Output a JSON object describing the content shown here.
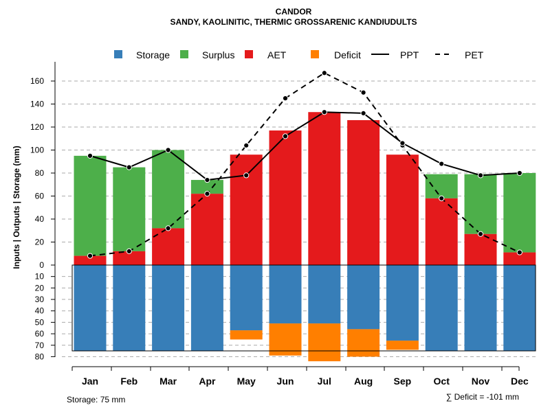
{
  "chart_data": {
    "type": "bar",
    "title": "CANDOR",
    "subtitle": "SANDY, KAOLINITIC, THERMIC GROSSARENIC KANDIUDULTS",
    "ylabel": "Inputs | Outputs | Storage    (mm)",
    "categories": [
      "Jan",
      "Feb",
      "Mar",
      "Apr",
      "May",
      "Jun",
      "Jul",
      "Aug",
      "Sep",
      "Oct",
      "Nov",
      "Dec"
    ],
    "ylim_upper": [
      0,
      170
    ],
    "ylim_lower": [
      0,
      80
    ],
    "upper_ticks": [
      "0",
      "20",
      "40",
      "60",
      "80",
      "100",
      "120",
      "140",
      "160"
    ],
    "upper_tick_values": [
      0,
      20,
      40,
      60,
      80,
      100,
      120,
      140,
      160
    ],
    "lower_ticks": [
      "10",
      "20",
      "30",
      "40",
      "50",
      "60",
      "70",
      "80"
    ],
    "lower_tick_values": [
      10,
      20,
      30,
      40,
      50,
      60,
      70,
      80
    ],
    "series": [
      {
        "name": "Storage",
        "color": "#377EB8",
        "values": [
          75,
          75,
          75,
          75,
          57,
          51,
          51,
          56,
          66,
          75,
          75,
          75
        ]
      },
      {
        "name": "Surplus",
        "color": "#4DAF4A",
        "values": [
          87,
          73,
          68,
          12,
          0,
          0,
          0,
          0,
          0,
          21,
          52,
          69
        ]
      },
      {
        "name": "AET",
        "color": "#E41A1C",
        "values": [
          8,
          12,
          32,
          62,
          96,
          117,
          133,
          126,
          96,
          58,
          27,
          11
        ]
      },
      {
        "name": "Deficit",
        "color": "#FF7F00",
        "values": [
          0,
          0,
          0,
          0,
          8,
          28,
          33,
          24,
          8,
          0,
          0,
          0
        ]
      },
      {
        "name": "PPT",
        "color": "#000000",
        "values": [
          95,
          85,
          100,
          74,
          78,
          112,
          133,
          132,
          106,
          88,
          78,
          80
        ]
      },
      {
        "name": "PET",
        "color": "#000000",
        "values": [
          8,
          12,
          32,
          62,
          104,
          145,
          167,
          150,
          104,
          58,
          27,
          11
        ]
      }
    ],
    "legend": [
      "Storage",
      "Surplus",
      "AET",
      "Deficit",
      "PPT",
      "PET"
    ],
    "storage_note": "Storage: 75 mm",
    "deficit_note": "∑ Deficit = -101 mm"
  }
}
